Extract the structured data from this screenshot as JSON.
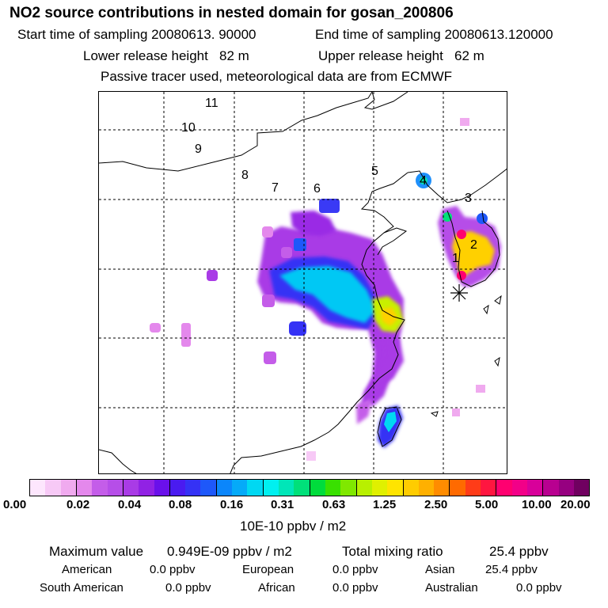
{
  "header": {
    "title": "NO2 source contributions in nested domain for gosan_200806",
    "start_label": "Start time of sampling 20080613. 90000",
    "end_label": "End time of sampling 20080613.120000",
    "lower_label": "Lower release height   82 m",
    "upper_label": "Upper release height   62 m",
    "note": "Passive tracer used, meteorological data are from ECMWF"
  },
  "map": {
    "site_labels": [
      "1",
      "2",
      "3",
      "4",
      "5",
      "6",
      "7",
      "8",
      "9",
      "10",
      "11"
    ],
    "receptor_marker": "asterisk-receptor-gosan"
  },
  "colorbar": {
    "colors": [
      "#fde6fd",
      "#f7c9f6",
      "#f0aaef",
      "#e488ec",
      "#c45de9",
      "#b64ee8",
      "#a93be6",
      "#9122e4",
      "#6a10ea",
      "#4a1bf0",
      "#3532f5",
      "#1e58fa",
      "#0b86fb",
      "#05aaf8",
      "#00d8f2",
      "#00f0f0",
      "#00e6b8",
      "#00e07a",
      "#00dc3c",
      "#39e000",
      "#80e800",
      "#b8f000",
      "#e0f000",
      "#ffe400",
      "#ffcc00",
      "#ffb000",
      "#ff8c00",
      "#ff6a00",
      "#ff3c18",
      "#ff1640",
      "#ff0070",
      "#f20088",
      "#d8009a",
      "#b80090",
      "#960080",
      "#700060"
    ],
    "tick_labels": [
      "0.00",
      "0.02",
      "0.04",
      "0.08",
      "0.16",
      "0.31",
      "0.63",
      "1.25",
      "2.50",
      "5.00",
      "10.00",
      "20.00"
    ],
    "units": "10E-10 ppbv / m2"
  },
  "stats": {
    "max_label": "Maximum value",
    "max_value": "0.949E-09 ppbv / m2",
    "total_label": "Total mixing ratio",
    "total_value": "25.4 ppbv",
    "regions": [
      {
        "name": "American",
        "value": "0.0 ppbv"
      },
      {
        "name": "European",
        "value": "0.0 ppbv"
      },
      {
        "name": "Asian",
        "value": "25.4 ppbv"
      },
      {
        "name": "South American",
        "value": "0.0 ppbv"
      },
      {
        "name": "African",
        "value": "0.0 ppbv"
      },
      {
        "name": "Australian",
        "value": "0.0 ppbv"
      }
    ]
  }
}
